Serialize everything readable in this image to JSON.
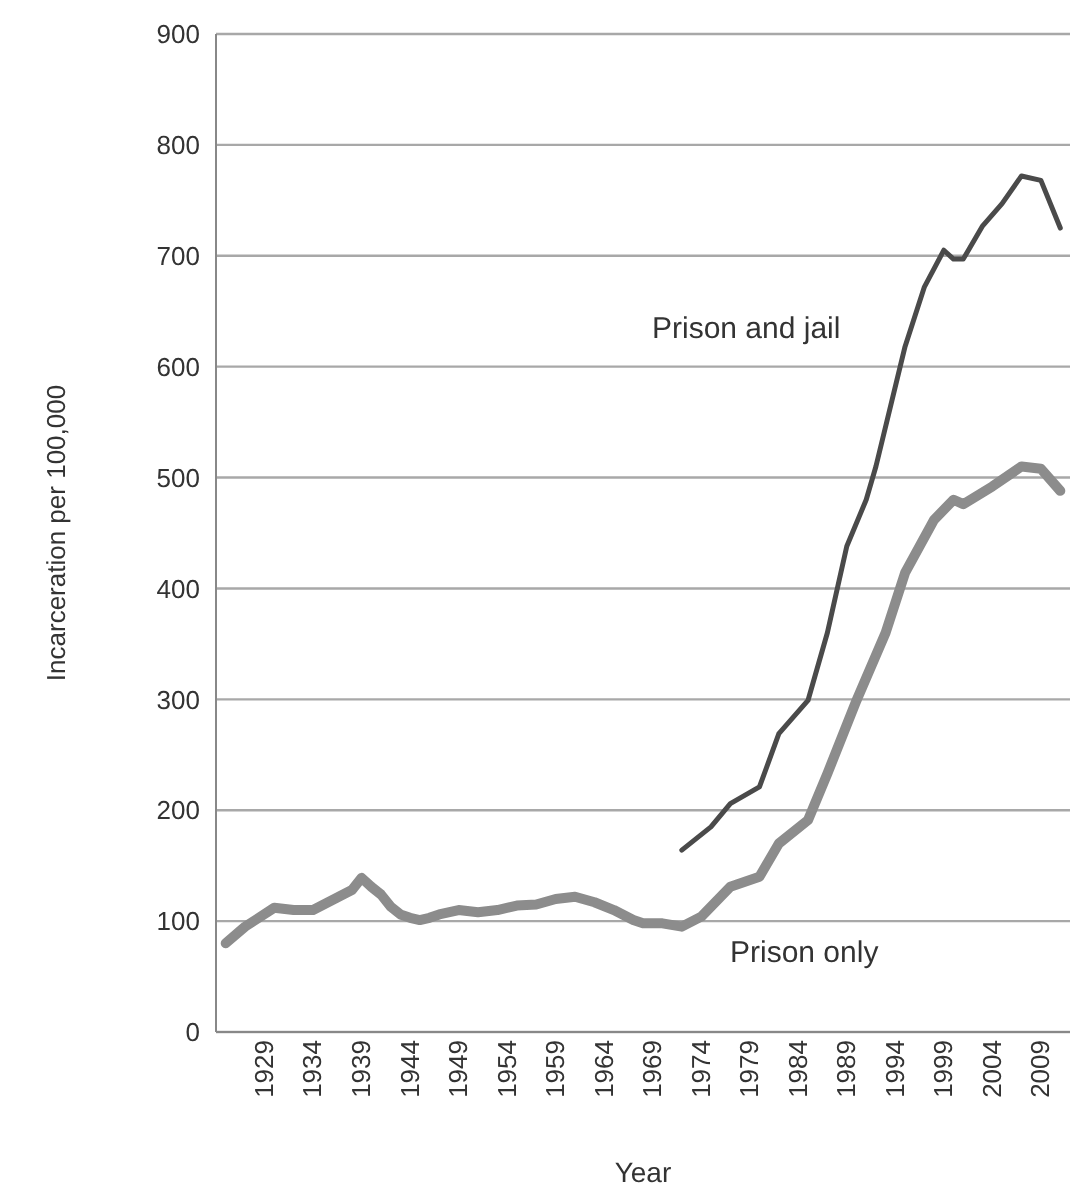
{
  "chart_data": {
    "type": "line",
    "xlabel": "Year",
    "ylabel": "Incarceration per 100,000",
    "xlim": [
      1924,
      2012
    ],
    "xticks": [
      1929,
      1934,
      1939,
      1944,
      1949,
      1954,
      1959,
      1964,
      1969,
      1974,
      1979,
      1984,
      1989,
      1994,
      1999,
      2004,
      2009
    ],
    "ylim": [
      0,
      900
    ],
    "yticks": [
      0,
      100,
      200,
      300,
      400,
      500,
      600,
      700,
      800,
      900
    ],
    "grid": "y",
    "marker": "none",
    "line_style": "solid",
    "series": [
      {
        "name": "Prison and jail",
        "color": "#4a4a4a",
        "x": [
          1972,
          1975,
          1977,
          1980,
          1982,
          1985,
          1987,
          1989,
          1991,
          1992,
          1995,
          1997,
          1999,
          2000,
          2001,
          2003,
          2005,
          2007,
          2009,
          2011
        ],
        "values": [
          164,
          185,
          206,
          221,
          269,
          299,
          360,
          438,
          480,
          510,
          618,
          672,
          705,
          697,
          697,
          727,
          747,
          772,
          768,
          725
        ]
      },
      {
        "name": "Prison only",
        "color": "#8c8c8c",
        "x": [
          1925,
          1927,
          1930,
          1932,
          1934,
          1936,
          1938,
          1939,
          1940,
          1941,
          1942,
          1943,
          1944,
          1945,
          1946,
          1947,
          1949,
          1951,
          1953,
          1955,
          1957,
          1959,
          1961,
          1963,
          1965,
          1967,
          1968,
          1970,
          1972,
          1974,
          1977,
          1980,
          1982,
          1985,
          1987,
          1990,
          1993,
          1995,
          1998,
          2000,
          2001,
          2004,
          2007,
          2009,
          2011
        ],
        "values": [
          80,
          95,
          112,
          110,
          110,
          119,
          128,
          139,
          131,
          124,
          113,
          106,
          103,
          101,
          103,
          106,
          110,
          108,
          110,
          114,
          115,
          120,
          122,
          117,
          110,
          101,
          98,
          98,
          95,
          104,
          131,
          140,
          170,
          191,
          233,
          299,
          360,
          414,
          462,
          480,
          476,
          492,
          510,
          508,
          488
        ]
      }
    ]
  }
}
